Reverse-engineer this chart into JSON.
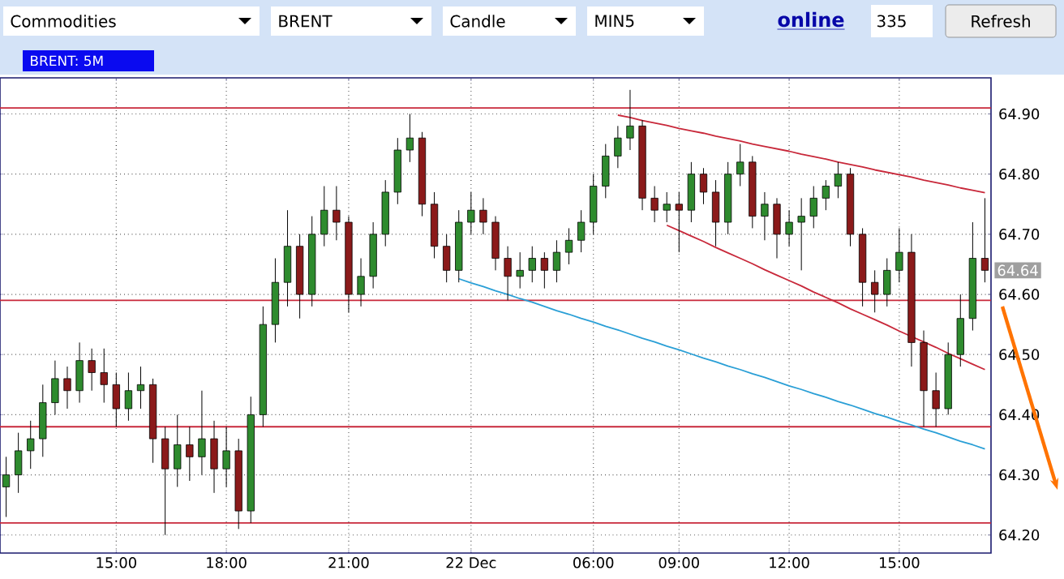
{
  "chart_data": {
    "type": "candlestick",
    "title": "BRENT: 5M",
    "annotations": [
      "Commodities",
      "BRENT",
      "Candle",
      "MIN5",
      "online",
      "335",
      "Refresh",
      {
        "text": "64.64",
        "y": 64.64
      }
    ],
    "categories": [
      null,
      null,
      null,
      null,
      null,
      null,
      null,
      null,
      null,
      "15:00",
      null,
      null,
      null,
      null,
      null,
      null,
      null,
      null,
      "18:00",
      null,
      null,
      null,
      null,
      null,
      null,
      null,
      null,
      null,
      "21:00",
      null,
      null,
      null,
      null,
      null,
      null,
      null,
      null,
      null,
      "22 Dec",
      null,
      null,
      null,
      null,
      null,
      null,
      null,
      null,
      null,
      "06:00",
      null,
      null,
      null,
      null,
      null,
      null,
      "09:00",
      null,
      null,
      null,
      null,
      null,
      null,
      null,
      null,
      "12:00",
      null,
      null,
      null,
      null,
      null,
      null,
      null,
      null,
      "15:00",
      null,
      null,
      null,
      null,
      null,
      null,
      null
    ],
    "ohlc": [
      [
        64.28,
        64.33,
        64.23,
        64.3
      ],
      [
        64.3,
        64.37,
        64.27,
        64.34
      ],
      [
        64.34,
        64.39,
        64.31,
        64.36
      ],
      [
        64.36,
        64.45,
        64.33,
        64.42
      ],
      [
        64.42,
        64.49,
        64.4,
        64.46
      ],
      [
        64.46,
        64.48,
        64.41,
        64.44
      ],
      [
        64.44,
        64.52,
        64.42,
        64.49
      ],
      [
        64.49,
        64.51,
        64.44,
        64.47
      ],
      [
        64.47,
        64.51,
        64.42,
        64.45
      ],
      [
        64.45,
        64.47,
        64.38,
        64.41
      ],
      [
        64.41,
        64.47,
        64.39,
        64.44
      ],
      [
        64.44,
        64.48,
        64.41,
        64.45
      ],
      [
        64.45,
        64.46,
        64.32,
        64.36
      ],
      [
        64.36,
        64.38,
        64.2,
        64.31
      ],
      [
        64.31,
        64.4,
        64.28,
        64.35
      ],
      [
        64.35,
        64.38,
        64.29,
        64.33
      ],
      [
        64.33,
        64.44,
        64.3,
        64.36
      ],
      [
        64.36,
        64.39,
        64.27,
        64.31
      ],
      [
        64.31,
        64.38,
        64.28,
        64.34
      ],
      [
        64.34,
        64.36,
        64.21,
        64.24
      ],
      [
        64.24,
        64.43,
        64.22,
        64.4
      ],
      [
        64.4,
        64.58,
        64.38,
        64.55
      ],
      [
        64.55,
        64.66,
        64.52,
        64.62
      ],
      [
        64.62,
        64.74,
        64.58,
        64.68
      ],
      [
        64.68,
        64.7,
        64.56,
        64.6
      ],
      [
        64.6,
        64.73,
        64.58,
        64.7
      ],
      [
        64.7,
        64.78,
        64.68,
        64.74
      ],
      [
        64.74,
        64.78,
        64.69,
        64.72
      ],
      [
        64.72,
        64.73,
        64.57,
        64.6
      ],
      [
        64.6,
        64.66,
        64.58,
        64.63
      ],
      [
        64.63,
        64.72,
        64.61,
        64.7
      ],
      [
        64.7,
        64.79,
        64.68,
        64.77
      ],
      [
        64.77,
        64.86,
        64.75,
        64.84
      ],
      [
        64.84,
        64.9,
        64.82,
        64.86
      ],
      [
        64.86,
        64.87,
        64.73,
        64.75
      ],
      [
        64.75,
        64.77,
        64.66,
        64.68
      ],
      [
        64.68,
        64.7,
        64.62,
        64.64
      ],
      [
        64.64,
        64.74,
        64.62,
        64.72
      ],
      [
        64.72,
        64.77,
        64.7,
        64.74
      ],
      [
        64.74,
        64.76,
        64.7,
        64.72
      ],
      [
        64.72,
        64.73,
        64.64,
        64.66
      ],
      [
        64.66,
        64.68,
        64.59,
        64.63
      ],
      [
        64.63,
        64.67,
        64.61,
        64.64
      ],
      [
        64.64,
        64.68,
        64.62,
        64.66
      ],
      [
        64.66,
        64.67,
        64.61,
        64.64
      ],
      [
        64.64,
        64.69,
        64.62,
        64.67
      ],
      [
        64.67,
        64.71,
        64.65,
        64.69
      ],
      [
        64.69,
        64.74,
        64.67,
        64.72
      ],
      [
        64.72,
        64.8,
        64.7,
        64.78
      ],
      [
        64.78,
        64.85,
        64.76,
        64.83
      ],
      [
        64.83,
        64.88,
        64.81,
        64.86
      ],
      [
        64.86,
        64.94,
        64.84,
        64.88
      ],
      [
        64.88,
        64.89,
        64.74,
        64.76
      ],
      [
        64.76,
        64.78,
        64.72,
        64.74
      ],
      [
        64.74,
        64.77,
        64.72,
        64.75
      ],
      [
        64.75,
        64.77,
        64.67,
        64.74
      ],
      [
        64.74,
        64.82,
        64.72,
        64.8
      ],
      [
        64.8,
        64.81,
        64.75,
        64.77
      ],
      [
        64.77,
        64.79,
        64.68,
        64.72
      ],
      [
        64.72,
        64.82,
        64.7,
        64.8
      ],
      [
        64.8,
        64.85,
        64.78,
        64.82
      ],
      [
        64.82,
        64.83,
        64.71,
        64.73
      ],
      [
        64.73,
        64.77,
        64.69,
        64.75
      ],
      [
        64.75,
        64.76,
        64.66,
        64.7
      ],
      [
        64.7,
        64.74,
        64.68,
        64.72
      ],
      [
        64.72,
        64.76,
        64.64,
        64.73
      ],
      [
        64.73,
        64.78,
        64.71,
        64.76
      ],
      [
        64.76,
        64.79,
        64.74,
        64.78
      ],
      [
        64.78,
        64.82,
        64.76,
        64.8
      ],
      [
        64.8,
        64.81,
        64.68,
        64.7
      ],
      [
        64.7,
        64.71,
        64.58,
        64.62
      ],
      [
        64.62,
        64.64,
        64.57,
        64.6
      ],
      [
        64.6,
        64.66,
        64.58,
        64.64
      ],
      [
        64.64,
        64.71,
        64.62,
        64.67
      ],
      [
        64.67,
        64.7,
        64.48,
        64.52
      ],
      [
        64.52,
        64.54,
        64.38,
        64.44
      ],
      [
        64.44,
        64.47,
        64.38,
        64.41
      ],
      [
        64.41,
        64.52,
        64.4,
        64.5
      ],
      [
        64.5,
        64.6,
        64.48,
        64.56
      ],
      [
        64.56,
        64.72,
        64.54,
        64.66
      ],
      [
        64.66,
        64.76,
        64.62,
        64.64
      ]
    ],
    "series": [
      {
        "type": "line",
        "color": "#2a9fd6",
        "values": [
          null,
          null,
          null,
          null,
          null,
          null,
          null,
          null,
          null,
          null,
          null,
          null,
          null,
          null,
          null,
          null,
          null,
          null,
          null,
          null,
          null,
          null,
          null,
          null,
          null,
          null,
          null,
          null,
          null,
          null,
          null,
          null,
          null,
          null,
          null,
          null,
          null,
          64.626,
          64.619,
          64.613,
          64.606,
          64.6,
          64.593,
          64.587,
          64.58,
          64.573,
          64.567,
          64.56,
          64.554,
          64.547,
          64.541,
          64.534,
          64.527,
          64.521,
          64.514,
          64.508,
          64.501,
          64.494,
          64.488,
          64.481,
          64.475,
          64.468,
          64.462,
          64.455,
          64.448,
          64.442,
          64.435,
          64.429,
          64.422,
          64.416,
          64.409,
          64.402,
          64.396,
          64.389,
          64.383,
          64.376,
          64.37,
          64.363,
          64.356,
          64.35,
          64.343
        ]
      },
      {
        "type": "line",
        "color": "#c8283a",
        "values": [
          null,
          null,
          null,
          null,
          null,
          null,
          null,
          null,
          null,
          null,
          null,
          null,
          null,
          null,
          null,
          null,
          null,
          null,
          null,
          null,
          null,
          null,
          null,
          null,
          null,
          null,
          null,
          null,
          null,
          null,
          null,
          null,
          null,
          null,
          null,
          null,
          null,
          null,
          null,
          null,
          null,
          null,
          null,
          null,
          null,
          null,
          null,
          null,
          null,
          null,
          64.898,
          64.894,
          64.889,
          64.885,
          64.881,
          64.876,
          64.872,
          64.868,
          64.863,
          64.859,
          64.855,
          64.85,
          64.846,
          64.842,
          64.838,
          64.833,
          64.829,
          64.825,
          64.82,
          64.816,
          64.812,
          64.807,
          64.803,
          64.799,
          64.795,
          64.79,
          64.786,
          64.782,
          64.777,
          64.773,
          64.769
        ]
      },
      {
        "type": "line",
        "color": "#c8283a",
        "values": [
          null,
          null,
          null,
          null,
          null,
          null,
          null,
          null,
          null,
          null,
          null,
          null,
          null,
          null,
          null,
          null,
          null,
          null,
          null,
          null,
          null,
          null,
          null,
          null,
          null,
          null,
          null,
          null,
          null,
          null,
          null,
          null,
          null,
          null,
          null,
          null,
          null,
          null,
          null,
          null,
          null,
          null,
          null,
          null,
          null,
          null,
          null,
          null,
          null,
          null,
          null,
          null,
          null,
          null,
          64.715,
          64.706,
          64.697,
          64.688,
          64.678,
          64.669,
          64.66,
          64.651,
          64.641,
          64.632,
          64.623,
          64.614,
          64.604,
          64.595,
          64.586,
          64.576,
          64.567,
          64.558,
          64.549,
          64.539,
          64.53,
          64.521,
          64.512,
          64.502,
          64.493,
          64.484,
          64.475
        ]
      }
    ],
    "ref_lines": [
      {
        "axis": "y",
        "value": 64.91,
        "color": "#c8283a"
      },
      {
        "axis": "y",
        "value": 64.59,
        "color": "#c8283a"
      },
      {
        "axis": "y",
        "value": 64.38,
        "color": "#c8283a"
      },
      {
        "axis": "y",
        "value": 64.22,
        "color": "#c8283a"
      }
    ],
    "ylim": [
      64.17,
      64.96
    ],
    "yticks": [
      {
        "value": 64.2,
        "label": "64.20"
      },
      {
        "value": 64.3,
        "label": "64.30"
      },
      {
        "value": 64.4,
        "label": "64.40"
      },
      {
        "value": 64.5,
        "label": "64.50"
      },
      {
        "value": 64.6,
        "label": "64.60"
      },
      {
        "value": 64.7,
        "label": "64.70"
      },
      {
        "value": 64.8,
        "label": "64.80"
      },
      {
        "value": 64.9,
        "label": "64.90"
      }
    ],
    "grid": true
  }
}
